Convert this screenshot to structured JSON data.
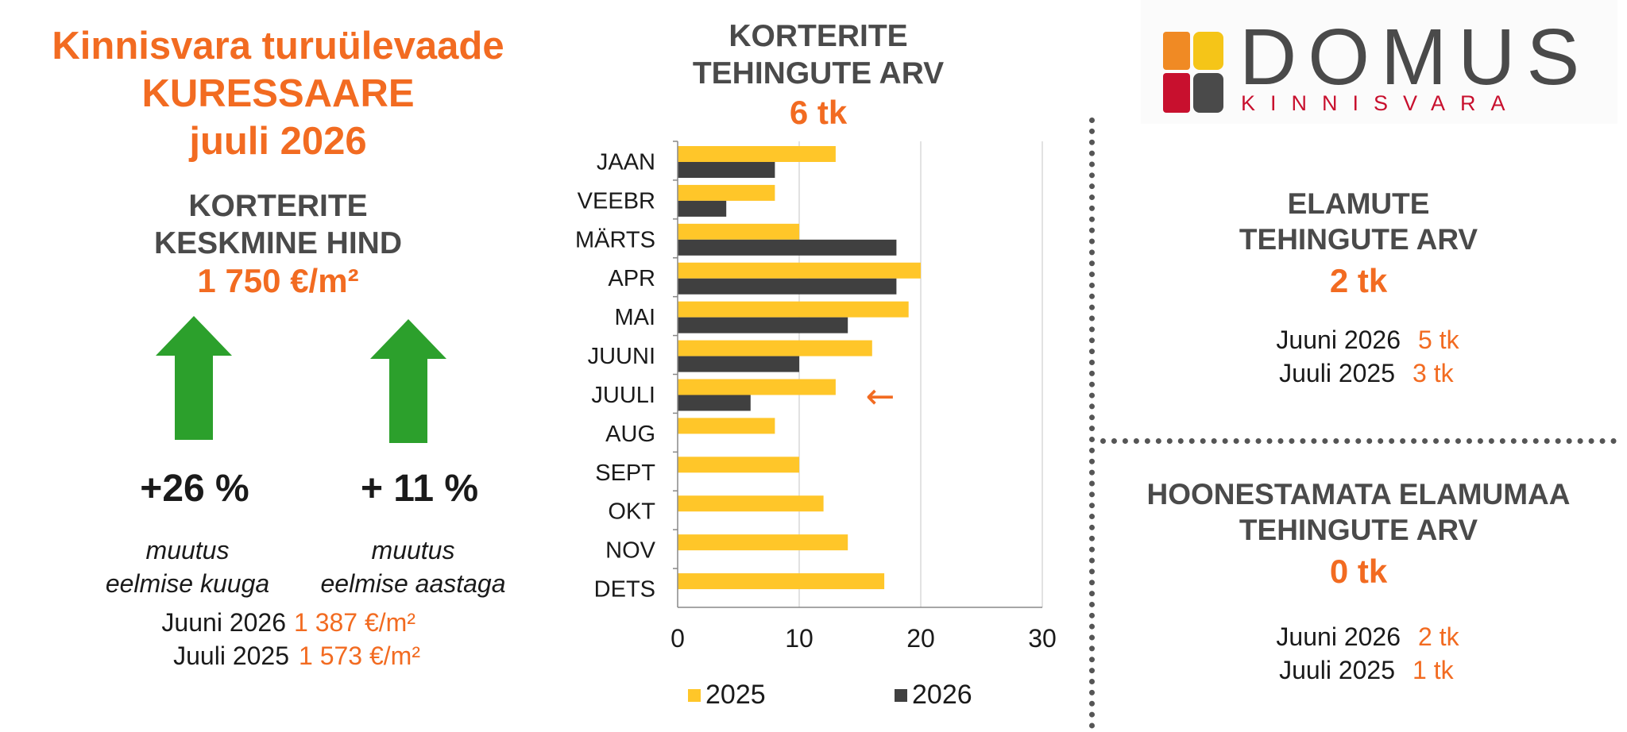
{
  "left": {
    "title_lines": [
      "Kinnisvara turuülevaade",
      "KURESSAARE",
      "juuli 2026"
    ],
    "avg_price_heading": [
      "KORTERITE",
      "KESKMINE HIND"
    ],
    "avg_price_value": "1 750 €/m²",
    "change_month": "+26 %",
    "change_year": "+ 11 %",
    "note_month": [
      "muutus",
      "eelmise kuuga"
    ],
    "note_year": [
      "muutus",
      "eelmise aastaga"
    ],
    "compare": [
      {
        "label": "Juuni 2026",
        "value": "1 387 €/m²"
      },
      {
        "label": "Juuli 2025",
        "value": "1 573 €/m²"
      }
    ],
    "arrow_color": "#2ca02c",
    "arrow_icon": "arrow-up-icon"
  },
  "middle": {
    "heading": [
      "KORTERITE",
      "TEHINGUTE ARV"
    ],
    "value": "6 tk"
  },
  "right": {
    "elamute": {
      "heading": [
        "ELAMUTE",
        "TEHINGUTE ARV"
      ],
      "value": "2 tk",
      "rows": [
        {
          "label": "Juuni 2026",
          "value": "5 tk"
        },
        {
          "label": "Juuli 2025",
          "value": "3 tk"
        }
      ]
    },
    "maa": {
      "heading": [
        "HOONESTAMATA ELAMUMAA",
        "TEHINGUTE ARV"
      ],
      "value": "0 tk",
      "rows": [
        {
          "label": "Juuni 2026",
          "value": "2 tk"
        },
        {
          "label": "Juuli 2025",
          "value": "1 tk"
        }
      ]
    }
  },
  "logo": {
    "name": "DOMUS",
    "sub": "KINNISVARA",
    "colors": [
      "#f08a24",
      "#f5c518",
      "#c8102e",
      "#4a4a4a"
    ]
  },
  "colors": {
    "accent": "#f26b21",
    "heading": "#4a4a4a",
    "series_2025": "#ffc629",
    "series_2026": "#404040"
  },
  "chart_data": {
    "type": "bar",
    "orientation": "horizontal",
    "categories": [
      "JAAN",
      "VEEBR",
      "MÄRTS",
      "APR",
      "MAI",
      "JUUNI",
      "JUULI",
      "AUG",
      "SEPT",
      "OKT",
      "NOV",
      "DETS"
    ],
    "series": [
      {
        "name": "2025",
        "color": "#ffc629",
        "values": [
          13,
          8,
          10,
          20,
          19,
          16,
          13,
          8,
          10,
          12,
          14,
          17
        ]
      },
      {
        "name": "2026",
        "color": "#404040",
        "values": [
          8,
          4,
          18,
          18,
          14,
          10,
          6,
          null,
          null,
          null,
          null,
          null
        ]
      }
    ],
    "xlim": [
      0,
      30
    ],
    "xticks": [
      0,
      10,
      20,
      30
    ],
    "grid": true,
    "legend": "bottom",
    "highlight": {
      "category": "JUULI",
      "marker": "←"
    }
  }
}
